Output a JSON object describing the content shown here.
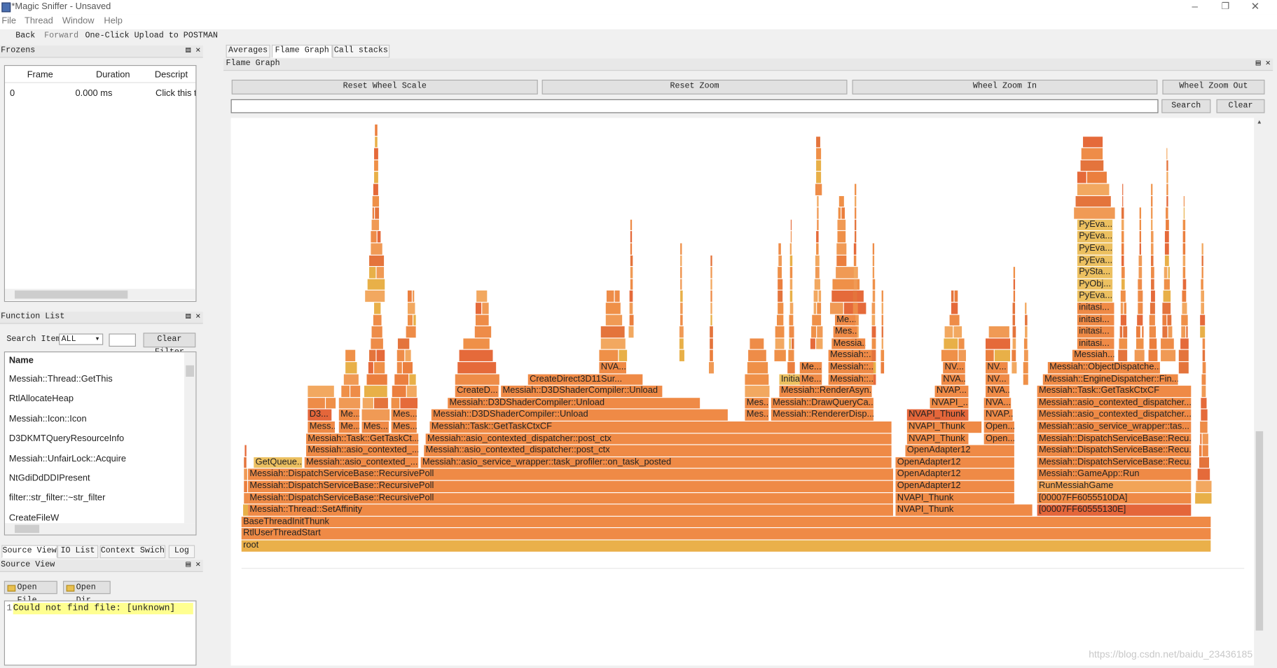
{
  "window": {
    "title": "*Magic Sniffer - Unsaved"
  },
  "menu": [
    "File",
    "Thread",
    "Window",
    "Help"
  ],
  "toolbar": [
    "Back",
    "Forward",
    "One-Click Upload to POSTMAN"
  ],
  "frozens": {
    "title": "Frozens",
    "columns": [
      "Frame",
      "Duration",
      "Descript"
    ],
    "rows": [
      [
        "0",
        "0.000 ms",
        "Click this t"
      ]
    ]
  },
  "function_list": {
    "title": "Function List",
    "search_label": "Search Item:",
    "search_option": "ALL",
    "clear_button": "Clear Filter",
    "column": "Name",
    "items": [
      "Messiah::Thread::GetThis",
      "RtlAllocateHeap",
      "Messiah::Icon::Icon",
      "D3DKMTQueryResourceInfo",
      "Messiah::UnfairLock::Acquire",
      "NtGdiDdDDIPresent",
      "filter::str_filter::~str_filter",
      "CreateFileW"
    ]
  },
  "bottom_tabs": [
    "Source View",
    "IO List",
    "Context Swich",
    "Log"
  ],
  "source_view": {
    "title": "Source View",
    "buttons": [
      "Open File",
      "Open Dir"
    ],
    "line_number": "1",
    "message": "Could not find file: [unknown]"
  },
  "main_tabs": [
    "Averages",
    "Flame Graph",
    "Call stacks"
  ],
  "flame_graph": {
    "title": "Flame Graph",
    "buttons": [
      "Reset Wheel Scale",
      "Reset Zoom",
      "Wheel Zoom In",
      "Wheel Zoom Out"
    ],
    "search_button": "Search",
    "clear_button": "Clear",
    "frames": [
      "root",
      "RtlUserThreadStart",
      "BaseThreadInitThunk",
      "Messiah::Thread::SetAffinity",
      "NVAPI_Thunk",
      "[00007FF60555130E]",
      "Messiah::DispatchServiceBase::RecursivePoll",
      "NVAPI_Thunk",
      "[00007FF6055510DA]",
      "Messiah::DispatchServiceBase::RecursivePoll",
      "OpenAdapter12",
      "RunMessiahGame",
      "Messiah::DispatchServiceBase::RecursivePoll",
      "OpenAdapter12",
      "Messiah::GameApp::Run",
      "GetQueue...",
      "Messiah::asio_contexted_...",
      "Messiah::asio_service_wrapper::task_profiler::on_task_posted",
      "OpenAdapter12",
      "Messiah::DispatchServiceBase::Recu...",
      "Messiah::asio_contexted_...",
      "Messiah::asio_contexted_dispatcher::post_ctx",
      "OpenAdapter12",
      "Messiah::DispatchServiceBase::Recu...",
      "Messiah::Task::GetTaskCt...",
      "Messiah::asio_contexted_dispatcher::post_ctx",
      "NVAPI_Thunk",
      "Open...",
      "Messiah::DispatchServiceBase::Recu...",
      "Mess...",
      "Me...",
      "Mes...",
      "Mes...",
      "Messiah::Task::GetTaskCtxCF",
      "NVAPI_Thunk",
      "Open...",
      "Messiah::asio_service_wrapper::tas...",
      "D3...",
      "Me...",
      "Mes...",
      "Messiah::D3DShaderCompiler::Unload",
      "Mes...",
      "Messiah::RendererDisp...",
      "NVAPI_Thunk",
      "NVAP...",
      "Messiah::asio_contexted_dispatcher...",
      "Messiah::D3DShaderCompiler::Unload",
      "Mes...",
      "Messiah::DrawQueryCa...",
      "NVAPI_...",
      "NVA...",
      "Messiah::asio_contexted_dispatcher...",
      "CreateD...",
      "Messiah::D3DShaderCompiler::Unload",
      "Messiah::RenderAsyn...",
      "NVAP...",
      "NVA...",
      "Messiah::Task::GetTaskCtxCF",
      "CreateDirect3D11Sur...",
      "Initialize...",
      "Me...",
      "Messiah::...",
      "NVA...",
      "NV...",
      "Messiah::EngineDispatcher::Fin...",
      "NVA...",
      "Me...",
      "Messiah::...",
      "NV...",
      "NV...",
      "Messiah::ObjectDispatche...",
      "Messiah::...",
      "Messiah...",
      "Messia...",
      "initasi...",
      "Mes...",
      "initasi...",
      "Me...",
      "initasi...",
      "initasi...",
      "PyEva...",
      "PyObj...",
      "PySta...",
      "PyEva...",
      "PyEva...",
      "PyEva...",
      "PyEva..."
    ]
  },
  "watermark": "https://blog.csdn.net/baidu_23436185"
}
